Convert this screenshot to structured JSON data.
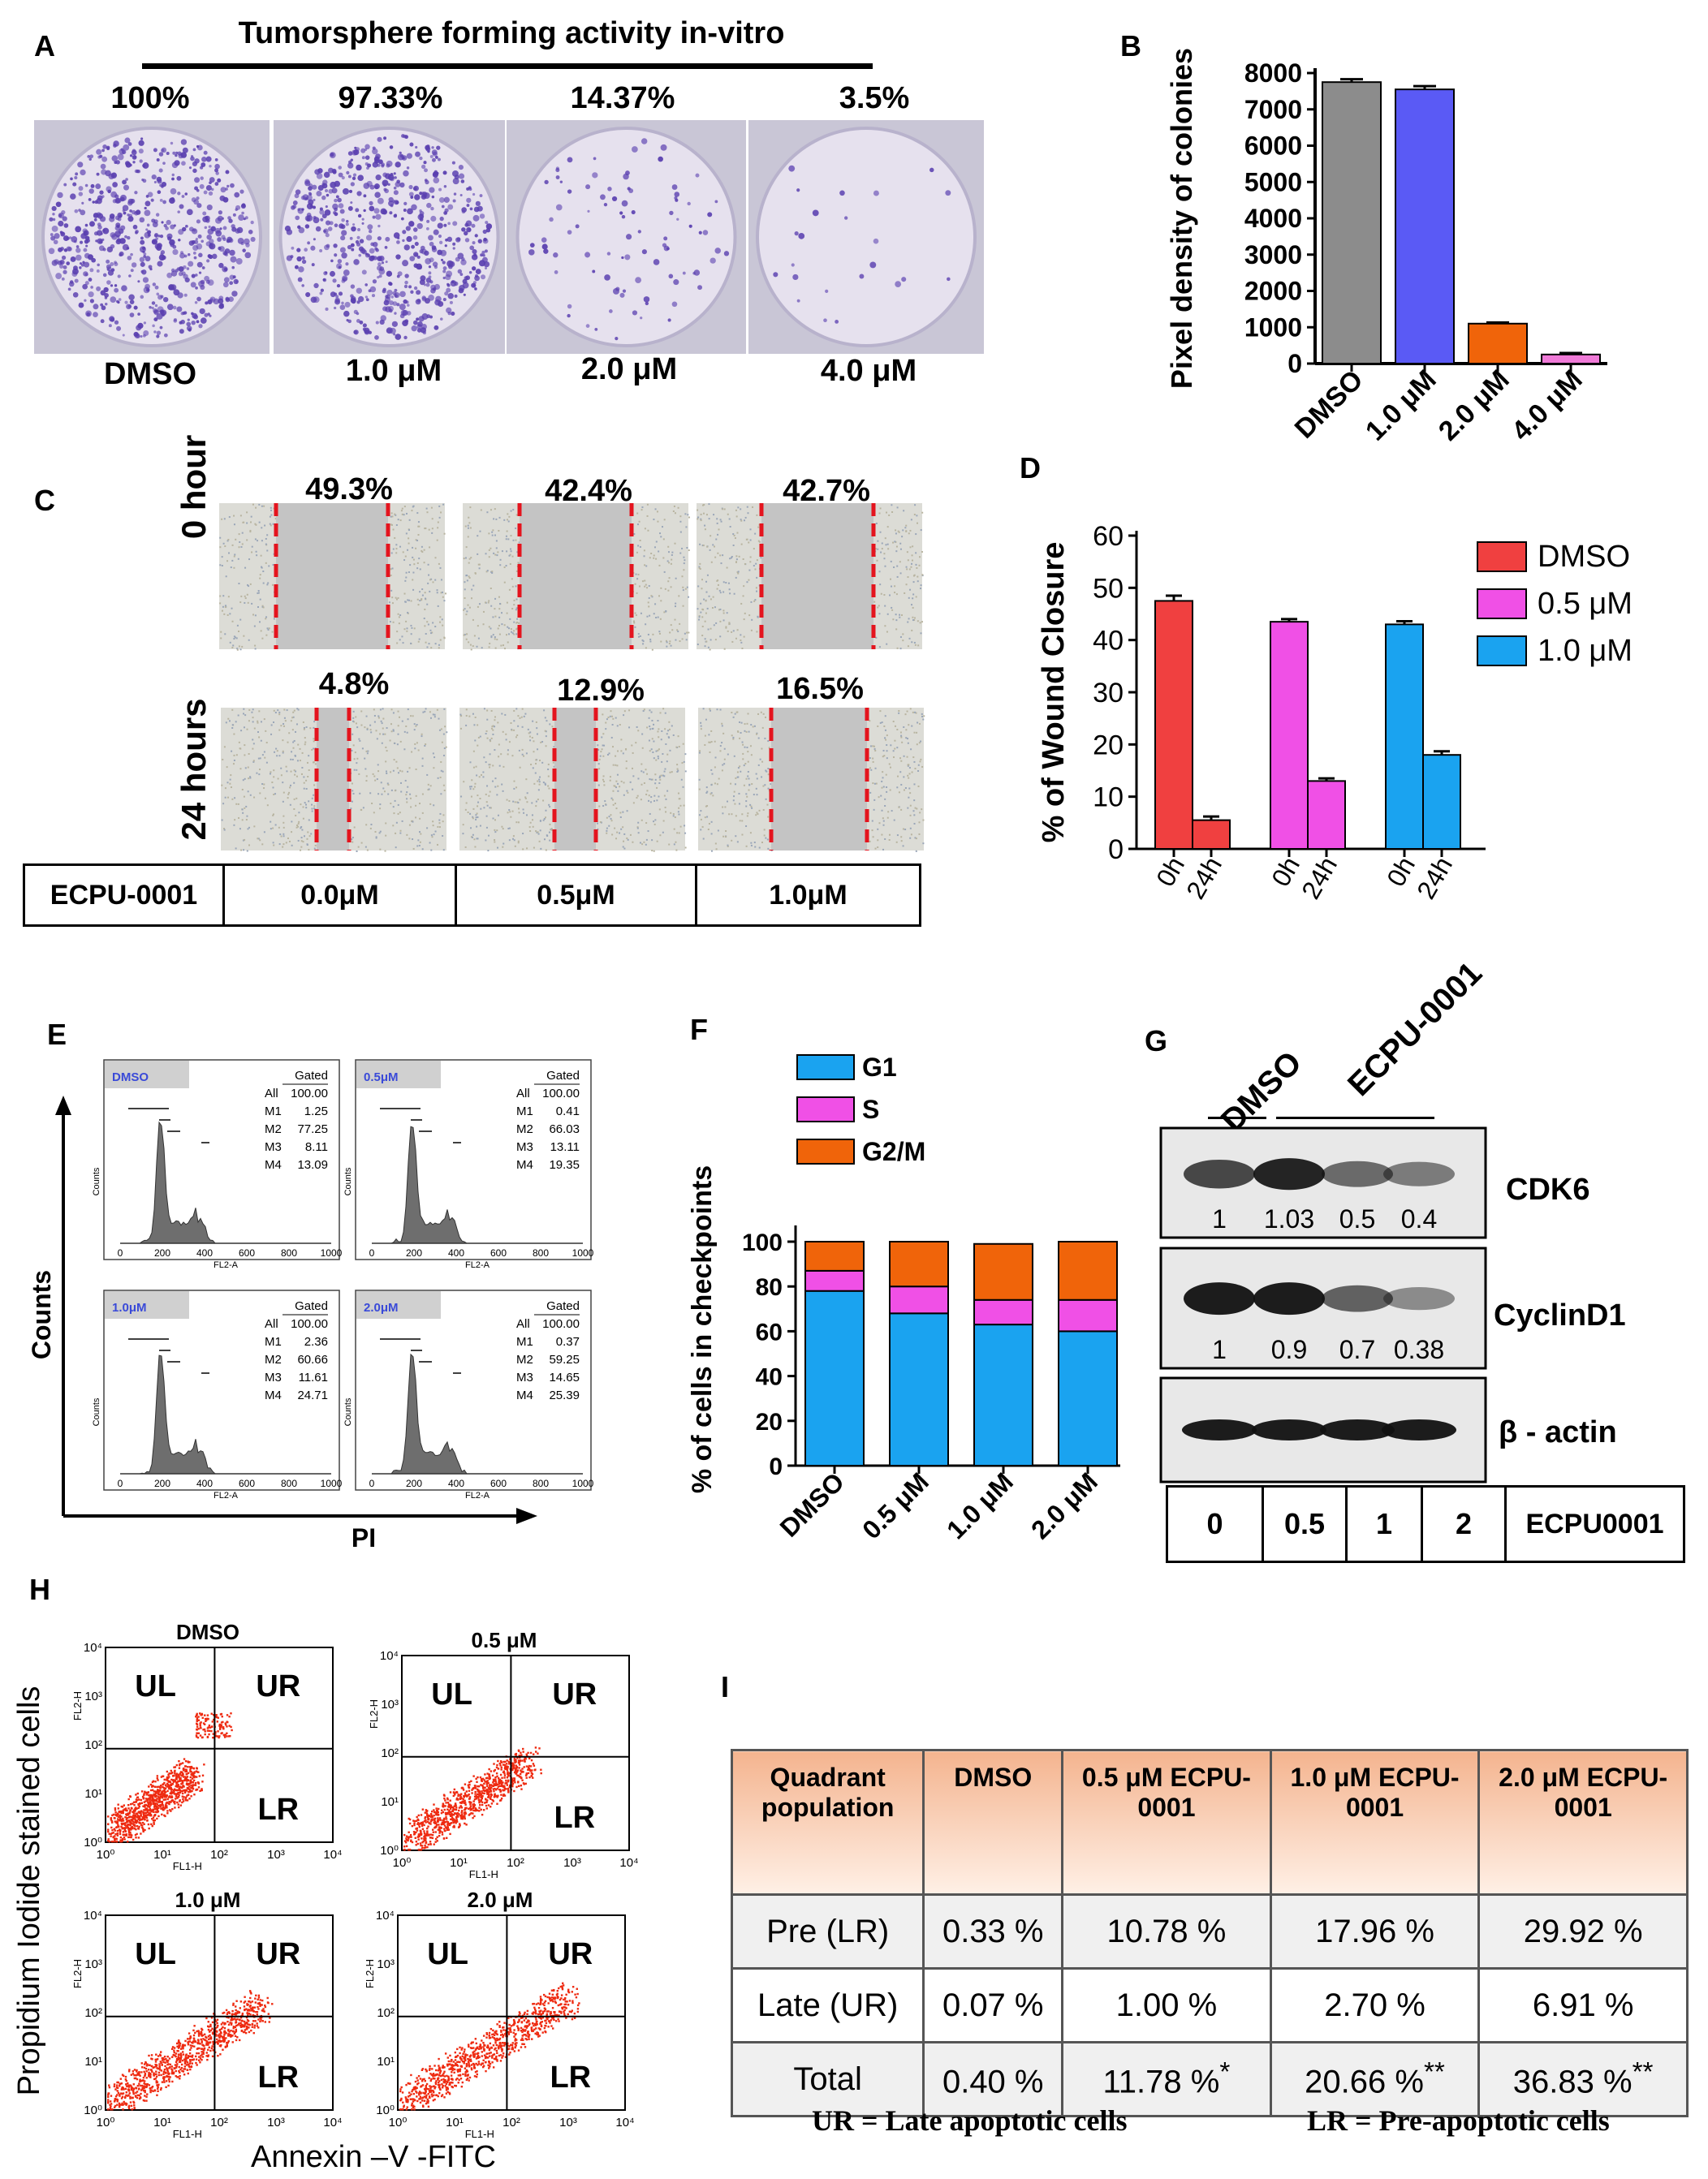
{
  "panels": {
    "A": "A",
    "B": "B",
    "C": "C",
    "D": "D",
    "E": "E",
    "F": "F",
    "G": "G",
    "H": "H",
    "I": "I"
  },
  "panelA": {
    "title": "Tumorsphere forming activity in-vitro",
    "percents": [
      "100%",
      "97.33%",
      "14.37%",
      "3.5%"
    ],
    "labels": [
      "DMSO",
      "1.0 μM",
      "2.0 μM",
      "4.0 μM"
    ],
    "plate_colonies": [
      1.0,
      0.97,
      0.14,
      0.035
    ]
  },
  "panelC": {
    "row_labels": [
      "0 hour",
      "24 hours"
    ],
    "top_percents": [
      "49.3%",
      "42.4%",
      "42.7%"
    ],
    "bottom_percents": [
      "4.8%",
      "12.9%",
      "16.5%"
    ],
    "table": [
      "ECPU-0001",
      "0.0μM",
      "0.5μM",
      "1.0μM"
    ]
  },
  "panelE": {
    "ylabel": "Counts",
    "xlabel": "PI",
    "subplots": [
      {
        "name": "DMSO",
        "gated": "Gated",
        "all": "100.00",
        "m1": "1.25",
        "m2": "77.25",
        "m3": "8.11",
        "m4": "13.09"
      },
      {
        "name": "0.5μM",
        "gated": "Gated",
        "all": "100.00",
        "m1": "0.41",
        "m2": "66.03",
        "m3": "13.11",
        "m4": "19.35"
      },
      {
        "name": "1.0μM",
        "gated": "Gated",
        "all": "100.00",
        "m1": "2.36",
        "m2": "60.66",
        "m3": "11.61",
        "m4": "24.71"
      },
      {
        "name": "2.0μM",
        "gated": "Gated",
        "all": "100.00",
        "m1": "0.37",
        "m2": "59.25",
        "m3": "14.65",
        "m4": "25.39"
      }
    ],
    "row_labels": [
      "All",
      "M1",
      "M2",
      "M3",
      "M4"
    ],
    "axis_x": "FL2-A",
    "axis_y": "Counts",
    "ticks_x": [
      "0",
      "200",
      "400",
      "600",
      "800",
      "1000"
    ]
  },
  "panelG": {
    "header_dmso": "DMSO",
    "header_drug": "ECPU-0001",
    "bands": [
      {
        "name": "CDK6",
        "values": [
          "1",
          "1.03",
          "0.5",
          "0.4"
        ]
      },
      {
        "name": "CyclinD1",
        "values": [
          "1",
          "0.9",
          "0.7",
          "0.38"
        ]
      },
      {
        "name": "β - actin",
        "values": []
      }
    ],
    "band_intensity": [
      [
        0.75,
        0.95,
        0.55,
        0.45
      ],
      [
        1.0,
        1.0,
        0.6,
        0.35
      ],
      [
        1.0,
        1.0,
        1.0,
        1.0
      ]
    ],
    "table": [
      "0",
      "0.5",
      "1",
      "2",
      "ECPU0001"
    ]
  },
  "panelH": {
    "ylabel": "Propidium Iodide stained cells",
    "xlabel": "Annexin –V -FITC",
    "subplots": [
      "DMSO",
      "0.5 μM",
      "1.0 μM",
      "2.0 μM"
    ],
    "quadrants": [
      "UL",
      "UR",
      "LR"
    ],
    "axis_x": "FL1-H",
    "axis_y": "FL2-H",
    "ticks": [
      "10⁰",
      "10¹",
      "10²",
      "10³",
      "10⁴"
    ]
  },
  "panelI": {
    "header": [
      "Quadrant population",
      "DMSO",
      "0.5 μM ECPU-0001",
      "1.0 μM ECPU-0001",
      "2.0 μM ECPU-0001"
    ],
    "rows": [
      {
        "label": "Pre (LR)",
        "cells": [
          "0.33 %",
          "10.78 %",
          "17.96 %",
          "29.92 %"
        ],
        "sig": [
          "",
          "",
          "",
          ""
        ]
      },
      {
        "label": "Late (UR)",
        "cells": [
          "0.07 %",
          "1.00 %",
          "2.70 %",
          "6.91 %"
        ],
        "sig": [
          "",
          "",
          "",
          ""
        ]
      },
      {
        "label": "Total",
        "cells": [
          "0.40 %",
          "11.78 %",
          "20.66 %",
          "36.83 %"
        ],
        "sig": [
          "",
          "*",
          "**",
          "**"
        ]
      }
    ],
    "footnotes": [
      "UR = Late apoptotic cells",
      "LR = Pre-apoptotic cells"
    ]
  },
  "colors": {
    "grey": "#8c8c8c",
    "blue": "#5a5af5",
    "orange": "#f0640a",
    "pink": "#f07ad8",
    "red": "#f04040",
    "magenta": "#f050e6",
    "cyan": "#1aa3f0",
    "g1": "#1aa3f0",
    "s": "#f050e6",
    "g2m": "#f0640a",
    "scatter": "#ee2a10"
  },
  "chart_data": [
    {
      "id": "B",
      "type": "bar",
      "categories": [
        "DMSO",
        "1.0 μM",
        "2.0 μM",
        "4.0 μM"
      ],
      "values": [
        7750,
        7550,
        1100,
        250
      ],
      "errors": [
        80,
        90,
        30,
        40
      ],
      "ylabel": "Pixel density of colonies",
      "ylim": [
        0,
        8000
      ],
      "yticks": [
        0,
        1000,
        2000,
        3000,
        4000,
        5000,
        6000,
        7000,
        8000
      ]
    },
    {
      "id": "D",
      "type": "bar",
      "groups": [
        "DMSO",
        "0.5 μM",
        "1.0 μM"
      ],
      "categories": [
        "0h",
        "24h",
        "0h",
        "24h",
        "0h",
        "24h"
      ],
      "values": [
        47.5,
        5.5,
        43.5,
        13,
        43,
        18
      ],
      "errors": [
        1.0,
        0.7,
        0.5,
        0.5,
        0.6,
        0.7
      ],
      "ylabel": "% of Wound Closure",
      "ylim": [
        0,
        60
      ],
      "yticks": [
        0,
        10,
        20,
        30,
        40,
        50,
        60
      ],
      "legend": [
        "DMSO",
        "0.5 μM",
        "1.0 μM"
      ]
    },
    {
      "id": "F",
      "type": "bar",
      "stacked": true,
      "categories": [
        "DMSO",
        "0.5 μM",
        "1.0 μM",
        "2.0 μM"
      ],
      "series": [
        {
          "name": "G1",
          "values": [
            78,
            68,
            63,
            60
          ]
        },
        {
          "name": "S",
          "values": [
            9,
            12,
            11,
            14
          ]
        },
        {
          "name": "G2/M",
          "values": [
            13,
            20,
            25,
            26
          ]
        }
      ],
      "ylabel": "% of cells in checkpoints",
      "ylim": [
        0,
        100
      ],
      "yticks": [
        0,
        20,
        40,
        60,
        80,
        100
      ]
    }
  ]
}
